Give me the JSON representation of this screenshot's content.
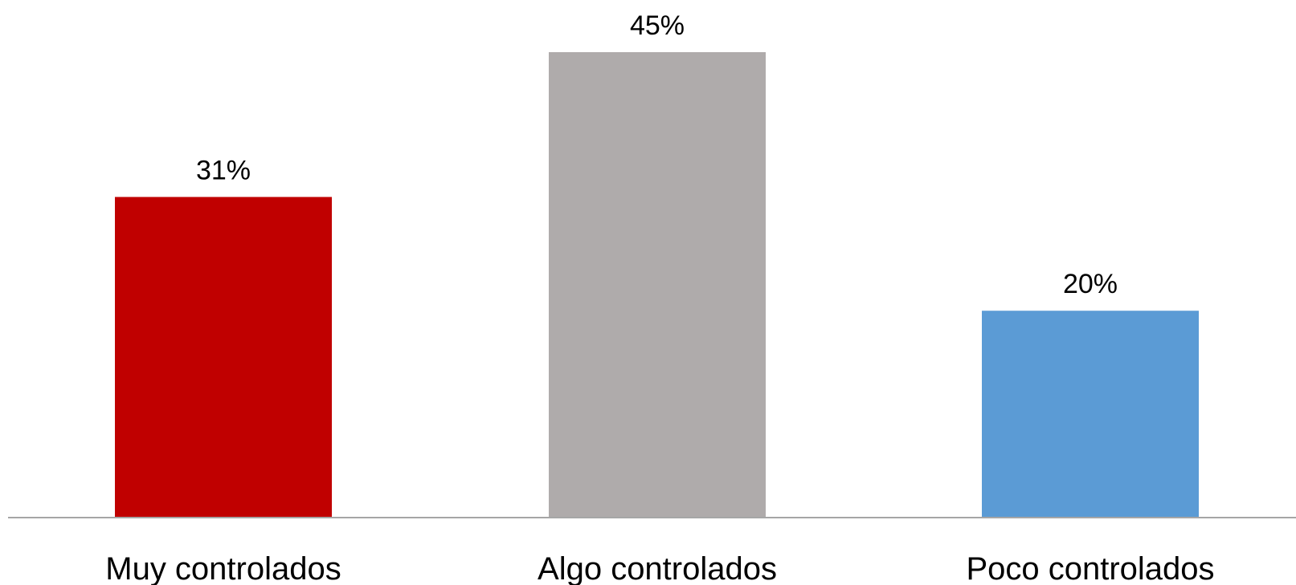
{
  "chart_data": {
    "type": "bar",
    "title": "",
    "xlabel": "",
    "ylabel": "",
    "categories": [
      "Muy controlados",
      "Algo controlados",
      "Poco controlados"
    ],
    "values": [
      31,
      45,
      20
    ],
    "data_labels": [
      "31%",
      "45%",
      "20%"
    ],
    "colors": [
      "#C00000",
      "#AFABAB",
      "#5B9BD5"
    ],
    "ylim": [
      0,
      45
    ],
    "grid": false,
    "legend": "none"
  }
}
